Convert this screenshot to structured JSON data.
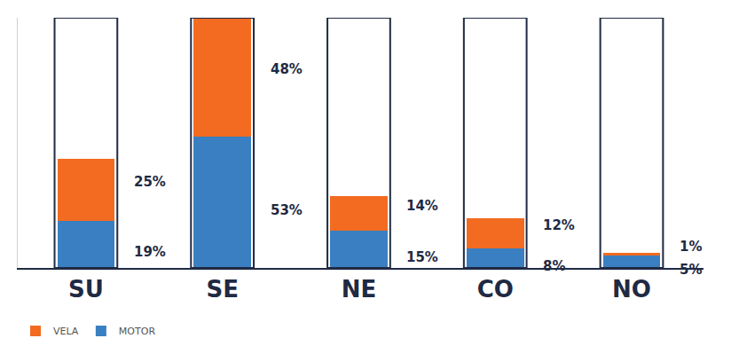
{
  "chart_data": {
    "type": "bar",
    "stacked": true,
    "categories": [
      "SU",
      "SE",
      "NE",
      "CO",
      "NO"
    ],
    "series": [
      {
        "name": "VELA",
        "color": "#f26b21",
        "values": [
          25,
          48,
          14,
          12,
          1
        ],
        "value_labels": [
          "25%",
          "48%",
          "14%",
          "12%",
          "1%"
        ]
      },
      {
        "name": "MOTOR",
        "color": "#3a7fc1",
        "values": [
          19,
          53,
          15,
          8,
          5
        ],
        "value_labels": [
          "19%",
          "53%",
          "15%",
          "8%",
          "5%"
        ]
      }
    ],
    "ylim": [
      0,
      101
    ],
    "data_labels": true,
    "tick_labels": "x",
    "grid": false,
    "legend": "bottom left"
  }
}
